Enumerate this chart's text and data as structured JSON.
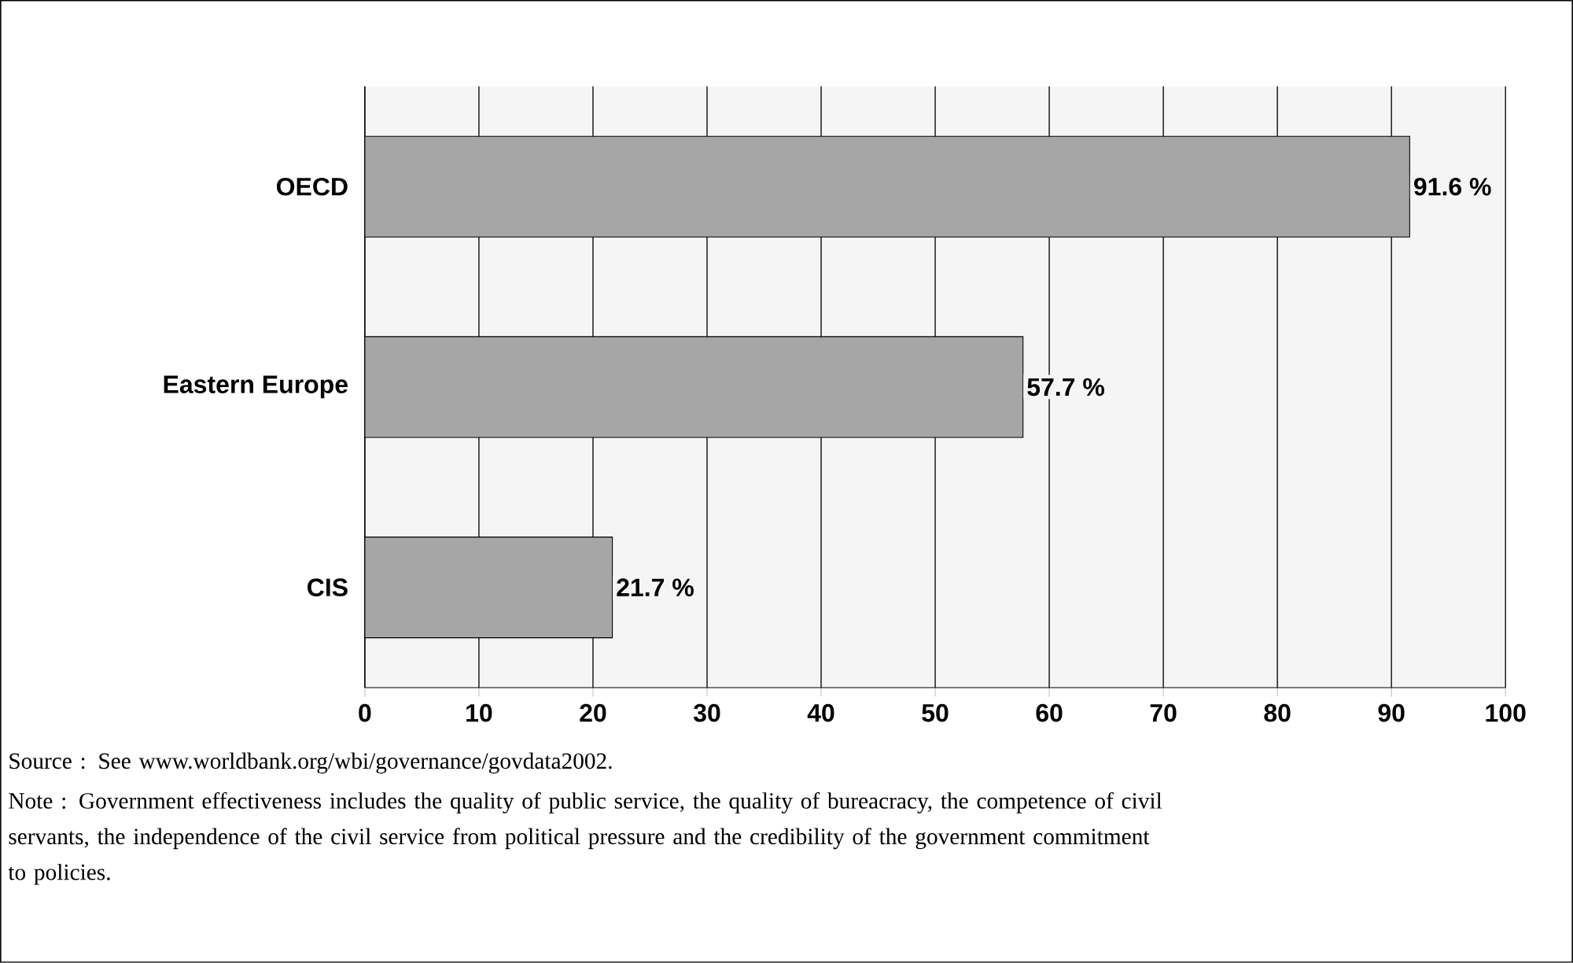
{
  "chart_data": {
    "type": "bar",
    "orientation": "horizontal",
    "categories": [
      "OECD",
      "Eastern Europe",
      "CIS"
    ],
    "values": [
      91.6,
      57.7,
      21.7
    ],
    "value_labels": [
      "91.6 %",
      "57.7 %",
      "21.7 %"
    ],
    "color": "#a6a6a6",
    "xlim": [
      0,
      100
    ],
    "xticks": [
      0,
      10,
      20,
      30,
      40,
      50,
      60,
      70,
      80,
      90,
      100
    ],
    "grid": "x",
    "annotations": [
      "Source : See www.worldbank.org/wbi/governance/govdata2002.",
      "Note : Government effectiveness includes the quality of public service, the quality of bureacracy, the competence of civil servants, the independence of the civil service from political pressure and the credibility of the government commitment to policies."
    ]
  }
}
